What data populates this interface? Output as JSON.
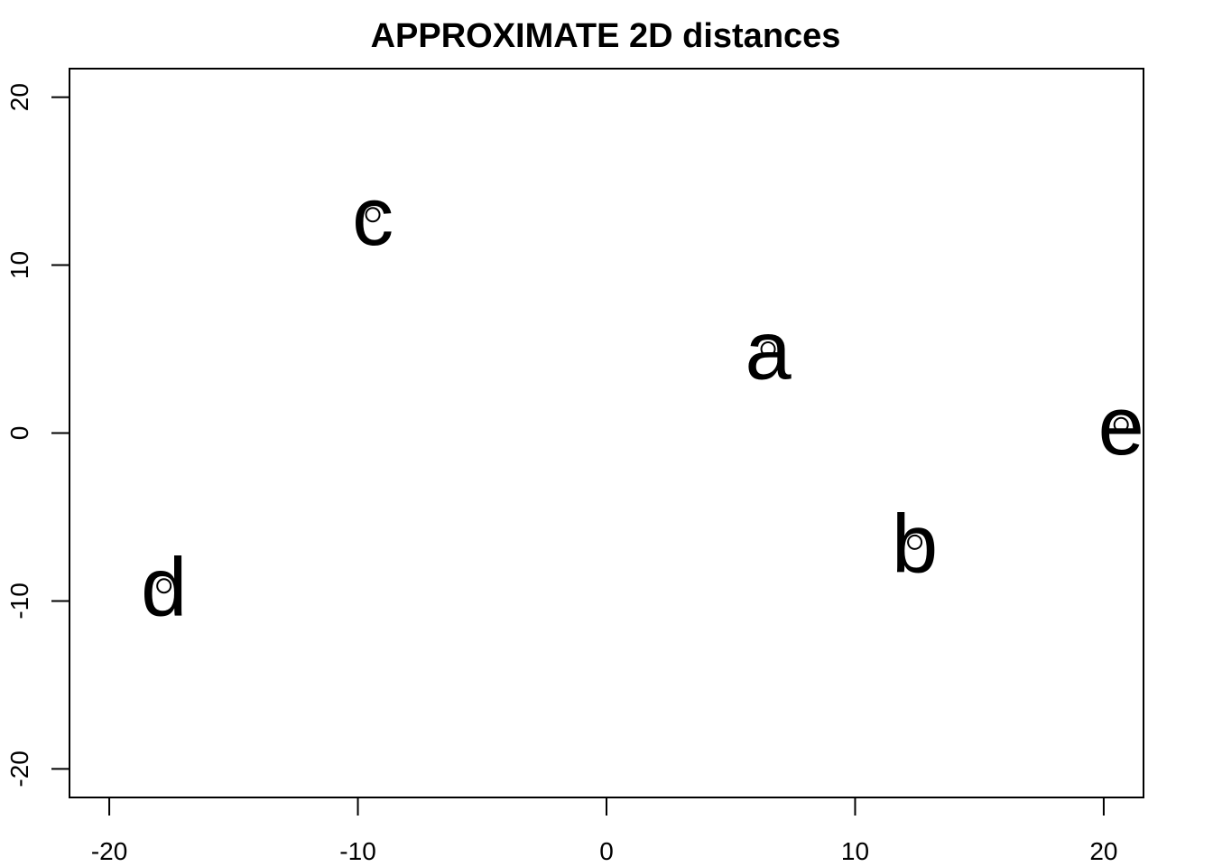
{
  "chart_data": {
    "type": "scatter",
    "title": "APPROXIMATE 2D distances",
    "xlabel": "",
    "ylabel": "",
    "xlim": [
      -21.6,
      21.6
    ],
    "ylim": [
      -21.7,
      21.7
    ],
    "x_ticks": [
      -20,
      -10,
      0,
      10,
      20
    ],
    "y_ticks": [
      -20,
      -10,
      0,
      10,
      20
    ],
    "x_tick_labels": [
      "-20",
      "-10",
      "0",
      "10",
      "20"
    ],
    "y_tick_labels": [
      "-20",
      "-10",
      "0",
      "10",
      "20"
    ],
    "grid": false,
    "legend": "none",
    "points": [
      {
        "label": "a",
        "x": 6.5,
        "y": 5.0
      },
      {
        "label": "b",
        "x": 12.4,
        "y": -6.5
      },
      {
        "label": "c",
        "x": -9.4,
        "y": 13.0
      },
      {
        "label": "d",
        "x": -17.8,
        "y": -9.1
      },
      {
        "label": "e",
        "x": 20.7,
        "y": 0.5
      }
    ]
  }
}
